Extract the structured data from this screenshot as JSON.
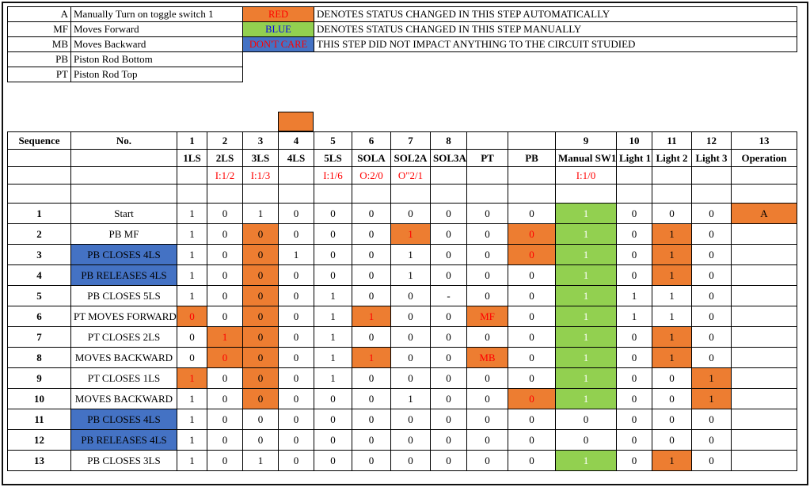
{
  "colors": {
    "orange": "#ED7D31",
    "green": "#92D050",
    "blue": "#4472C4",
    "red": "#FF0000",
    "blue_text": "#0000EE"
  },
  "legend": {
    "rows": [
      {
        "key": "A",
        "desc": "Manually Turn on toggle switch 1",
        "swatch": {
          "label": "RED",
          "bg": "orange",
          "fg": "red"
        },
        "meaning": "DENOTES STATUS CHANGED IN THIS STEP AUTOMATICALLY"
      },
      {
        "key": "MF",
        "desc": "Moves Forward",
        "swatch": {
          "label": "BLUE",
          "bg": "green",
          "fg": "blue_text"
        },
        "meaning": "DENOTES STATUS CHANGED IN THIS STEP MANUALLY"
      },
      {
        "key": "MB",
        "desc": "Moves Backward",
        "swatch": {
          "label": "DON'T CARE",
          "bg": "blue",
          "fg": "red"
        },
        "meaning": "THIS STEP DID NOT IMPACT ANYTHING TO THE CIRCUIT STUDIED"
      },
      {
        "key": "PB",
        "desc": "Piston Rod Bottom"
      },
      {
        "key": "PT",
        "desc": "Piston Rod Top"
      }
    ],
    "stray_cell_color": "orange"
  },
  "table": {
    "corner_seq": "Sequence",
    "corner_no": "No.",
    "col_numbers": [
      "1",
      "2",
      "3",
      "4",
      "5",
      "6",
      "7",
      "8",
      "",
      "",
      "9",
      "10",
      "11",
      "12",
      "13"
    ],
    "col_labels": [
      "1LS",
      "2LS",
      "3LS",
      "4LS",
      "5LS",
      "SOLA",
      "SOL2A",
      "SOL3A",
      "PT",
      "PB",
      "Manual SW1",
      "Light 1",
      "Light 2",
      "Light 3",
      "Operation"
    ],
    "addresses": [
      "",
      "I:1/2",
      "I:1/3",
      "",
      "I:1/6",
      "O:2/0",
      "O\"2/1",
      "",
      "",
      "",
      "I:1/0",
      "",
      "",
      "",
      ""
    ],
    "rows": [
      {
        "seq": "1",
        "label": "Start",
        "blue": false,
        "cells": [
          "1",
          "0",
          "1",
          "0",
          "0",
          "0",
          "0",
          "0",
          "0",
          "0",
          "1|g",
          "0",
          "0",
          "0",
          "A|o"
        ]
      },
      {
        "seq": "2",
        "label": "PB MF",
        "blue": false,
        "cells": [
          "1",
          "0",
          "0|o",
          "0",
          "0",
          "0",
          "1|or",
          "0",
          "0",
          "0|or",
          "1|g",
          "0",
          "1|o",
          "0",
          ""
        ]
      },
      {
        "seq": "3",
        "label": "PB CLOSES 4LS",
        "blue": true,
        "cells": [
          "1",
          "0",
          "0|o",
          "1",
          "0",
          "0",
          "1",
          "0",
          "0",
          "0|or",
          "1|g",
          "0",
          "1|o",
          "0",
          ""
        ]
      },
      {
        "seq": "4",
        "label": "PB RELEASES 4LS",
        "blue": true,
        "cells": [
          "1",
          "0",
          "0|o",
          "0",
          "0",
          "0",
          "1",
          "0",
          "0",
          "0",
          "1|g",
          "0",
          "1|o",
          "0",
          ""
        ]
      },
      {
        "seq": "5",
        "label": "PB CLOSES 5LS",
        "blue": false,
        "cells": [
          "1",
          "0",
          "0|o",
          "0",
          "1",
          "0",
          "0",
          "-",
          "0",
          "0",
          "1|g",
          "1",
          "1",
          "0",
          ""
        ]
      },
      {
        "seq": "6",
        "label": "PT MOVES FORWARD",
        "blue": false,
        "cells": [
          "0|or",
          "0",
          "0|o",
          "0",
          "1",
          "1|or",
          "0",
          "0",
          "MF|or",
          "0",
          "1|g",
          "1",
          "1",
          "0",
          ""
        ]
      },
      {
        "seq": "7",
        "label": "PT CLOSES 2LS",
        "blue": false,
        "cells": [
          "0",
          "1|or",
          "0|o",
          "0",
          "1",
          "0",
          "0",
          "0",
          "0",
          "0",
          "1|g",
          "0",
          "1|o",
          "0",
          ""
        ]
      },
      {
        "seq": "8",
        "label": "MOVES BACKWARD",
        "blue": false,
        "cells": [
          "0",
          "0|or",
          "0|o",
          "0",
          "1",
          "1|or",
          "0",
          "0",
          "MB|or",
          "0",
          "1|g",
          "0",
          "1|o",
          "0",
          ""
        ]
      },
      {
        "seq": "9",
        "label": "PT CLOSES 1LS",
        "blue": false,
        "cells": [
          "1|or",
          "0",
          "0|o",
          "0",
          "1",
          "0",
          "0",
          "0",
          "0",
          "0",
          "1|g",
          "0",
          "0",
          "1|o",
          ""
        ]
      },
      {
        "seq": "10",
        "label": "MOVES BACKWARD",
        "blue": false,
        "cells": [
          "1",
          "0",
          "0|o",
          "0",
          "0",
          "0",
          "1",
          "0",
          "0",
          "0|or",
          "1|g",
          "0",
          "0",
          "1|o",
          ""
        ]
      },
      {
        "seq": "11",
        "label": "PB CLOSES 4LS",
        "blue": true,
        "cells": [
          "1",
          "0",
          "0",
          "0",
          "0",
          "0",
          "0",
          "0",
          "0",
          "0",
          "0",
          "0",
          "0",
          "0",
          ""
        ]
      },
      {
        "seq": "12",
        "label": "PB RELEASES 4LS",
        "blue": true,
        "cells": [
          "1",
          "0",
          "0",
          "0",
          "0",
          "0",
          "0",
          "0",
          "0",
          "0",
          "0",
          "0",
          "0",
          "0",
          ""
        ]
      },
      {
        "seq": "13",
        "label": "PB CLOSES 3LS",
        "blue": false,
        "cells": [
          "1",
          "0",
          "1",
          "0",
          "0",
          "0",
          "0",
          "0",
          "0",
          "0",
          "1|g",
          "0",
          "1|o",
          "0",
          ""
        ]
      }
    ]
  }
}
